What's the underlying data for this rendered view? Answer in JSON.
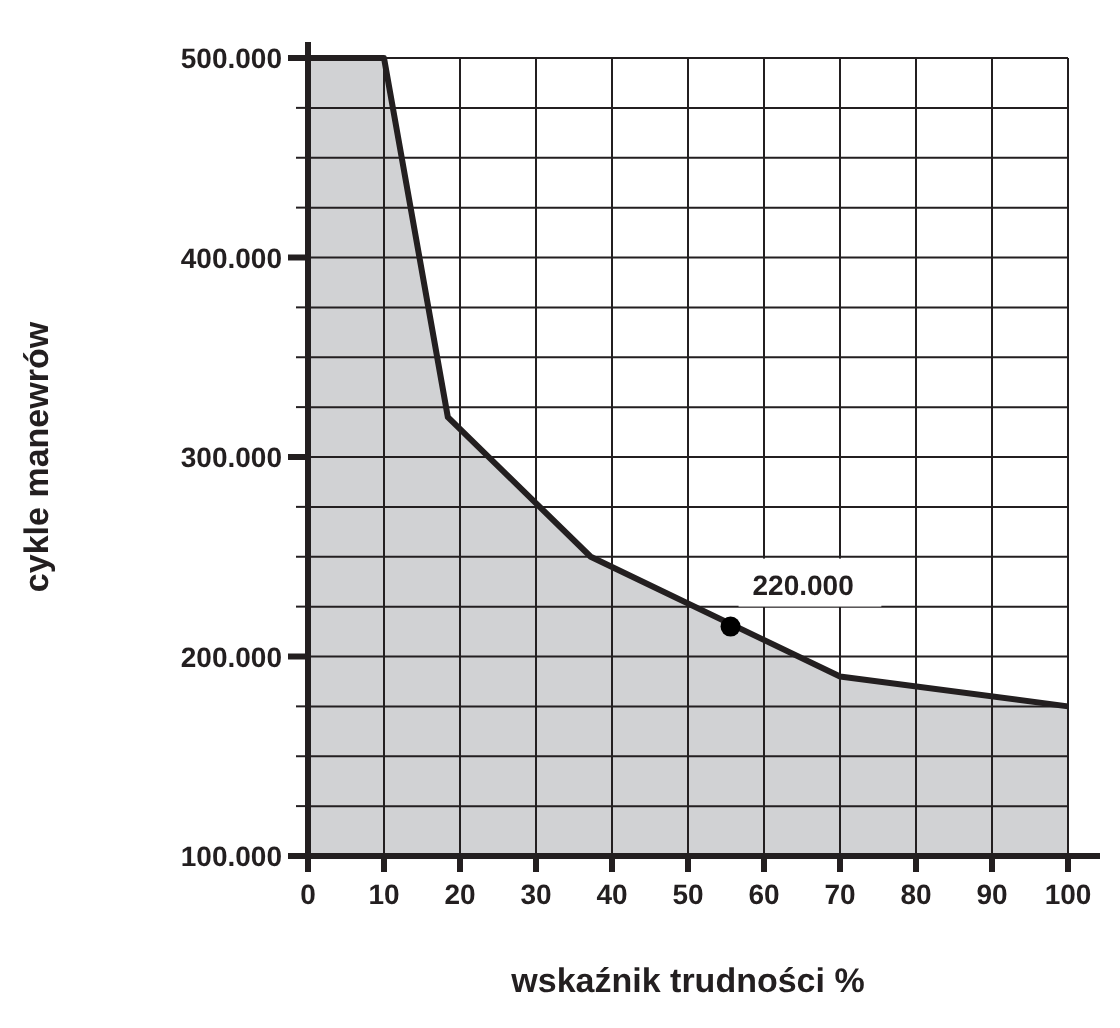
{
  "chart_data": {
    "type": "area",
    "xlabel": "wskaźnik trudności %",
    "ylabel": "cykle manewrów",
    "x": [
      0,
      10,
      18.4,
      37.2,
      70,
      100
    ],
    "series": [
      {
        "color": "#d1d2d4",
        "values": [
          500000,
          500000,
          320000,
          250000,
          190000,
          175000
        ]
      }
    ],
    "xlim": [
      0,
      100
    ],
    "xticks": [
      0,
      10,
      20,
      30,
      40,
      50,
      60,
      70,
      80,
      90,
      100
    ],
    "ylim": [
      100000,
      500000
    ],
    "yticks": [
      {
        "value": 100000,
        "label": "100.000"
      },
      {
        "value": 125000,
        "label": null
      },
      {
        "value": 150000,
        "label": null
      },
      {
        "value": 175000,
        "label": null
      },
      {
        "value": 200000,
        "label": "200.000"
      },
      {
        "value": 225000,
        "label": null
      },
      {
        "value": 250000,
        "label": null
      },
      {
        "value": 275000,
        "label": null
      },
      {
        "value": 300000,
        "label": "300.000"
      },
      {
        "value": 325000,
        "label": null
      },
      {
        "value": 350000,
        "label": null
      },
      {
        "value": 375000,
        "label": null
      },
      {
        "value": 400000,
        "label": "400.000"
      },
      {
        "value": 425000,
        "label": null
      },
      {
        "value": 450000,
        "label": null
      },
      {
        "value": 475000,
        "label": null
      },
      {
        "value": 500000,
        "label": "500.000"
      }
    ],
    "grid": true,
    "annotations": [
      {
        "text": "220.000",
        "x": 55.6,
        "y": 215000
      }
    ]
  }
}
